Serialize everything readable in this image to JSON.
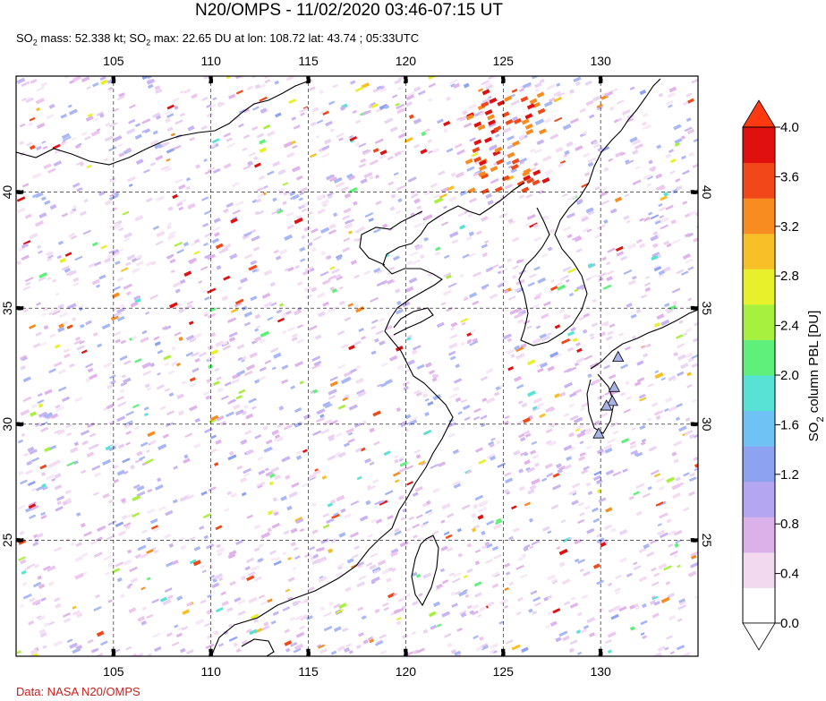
{
  "header": {
    "title": "N20/OMPS - 11/02/2020 03:46-07:15 UT",
    "mass_prefix": "SO",
    "mass_text": " mass: 52.338 kt; SO",
    "max_text": " max: 22.65 DU at lon: 108.72 lat: 43.74 ; 05:33UTC",
    "subscript": "2"
  },
  "credit": "Data: NASA N20/OMPS",
  "map": {
    "lon_range": [
      100,
      135
    ],
    "lat_range": [
      20,
      45
    ],
    "lon_ticks": [
      "105",
      "110",
      "115",
      "120",
      "125",
      "130"
    ],
    "lat_ticks": [
      "40",
      "35",
      "30",
      "25"
    ],
    "lon_tick_values": [
      105,
      110,
      115,
      120,
      125,
      130
    ],
    "lat_tick_values": [
      40,
      35,
      30,
      25
    ],
    "grid": "dashed",
    "volcano_marker": "triangle"
  },
  "colorbar": {
    "label_prefix": "SO",
    "label_suffix": " column PBL [DU]",
    "ticks": [
      "4.0",
      "3.6",
      "3.2",
      "2.8",
      "2.4",
      "2.0",
      "1.6",
      "1.2",
      "0.8",
      "0.4",
      "0.0"
    ],
    "range": [
      0,
      4
    ],
    "colors": [
      "#ffffff",
      "#f2d9f0",
      "#dcb0e8",
      "#b4a6f0",
      "#8ea2f2",
      "#6fc2f4",
      "#58e2d6",
      "#5ef07a",
      "#a8f040",
      "#e8f02c",
      "#f8c028",
      "#f88c20",
      "#f04818",
      "#e01010"
    ]
  }
}
